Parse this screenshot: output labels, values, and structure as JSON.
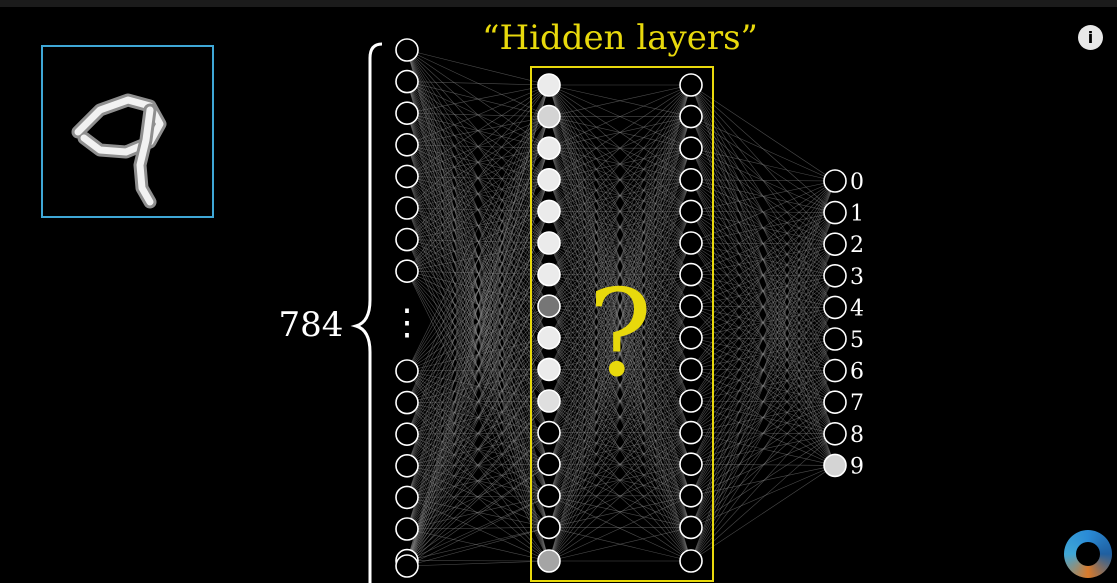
{
  "title": "“Hidden layers”",
  "input_count_label": "784",
  "question_mark": "?",
  "output_labels": [
    "0",
    "1",
    "2",
    "3",
    "4",
    "5",
    "6",
    "7",
    "8",
    "9"
  ],
  "input_ellipsis": "⋮",
  "info_icon": "i",
  "colors": {
    "accent_yellow": "#e8d90c",
    "input_frame": "#3fa7d6",
    "node_stroke": "#ffffff",
    "edge": "#8a8a8a"
  },
  "activations": {
    "hidden1": [
      1,
      0.9,
      1,
      1,
      1,
      1,
      1,
      0.5,
      1,
      1,
      0.95,
      0,
      0,
      0,
      0,
      0.7
    ],
    "output": [
      0,
      0,
      0,
      0,
      0,
      0,
      0,
      0,
      0,
      0.9
    ]
  }
}
